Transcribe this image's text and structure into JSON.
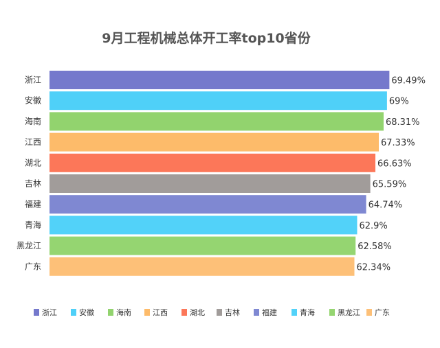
{
  "chart_data": {
    "type": "bar",
    "orientation": "horizontal",
    "title": "9月工程机械总体开工率top10省份",
    "categories": [
      "浙江",
      "安徽",
      "海南",
      "江西",
      "湖北",
      "吉林",
      "福建",
      "青海",
      "黑龙江",
      "广东"
    ],
    "values": [
      69.49,
      69,
      68.31,
      67.33,
      66.63,
      65.59,
      64.74,
      62.9,
      62.58,
      62.34
    ],
    "value_labels": [
      "69.49%",
      "69%",
      "68.31%",
      "67.33%",
      "66.63%",
      "65.59%",
      "64.74%",
      "62.9%",
      "62.58%",
      "62.34%"
    ],
    "colors": [
      "#7579CC",
      "#4FD0F8",
      "#92D36E",
      "#FDBB6A",
      "#FC7759",
      "#A19C9A",
      "#7F88D2",
      "#52D2F9",
      "#95D571",
      "#FDC078"
    ],
    "xlim": [
      0,
      70
    ],
    "grid": false,
    "legend_position": "bottom"
  }
}
